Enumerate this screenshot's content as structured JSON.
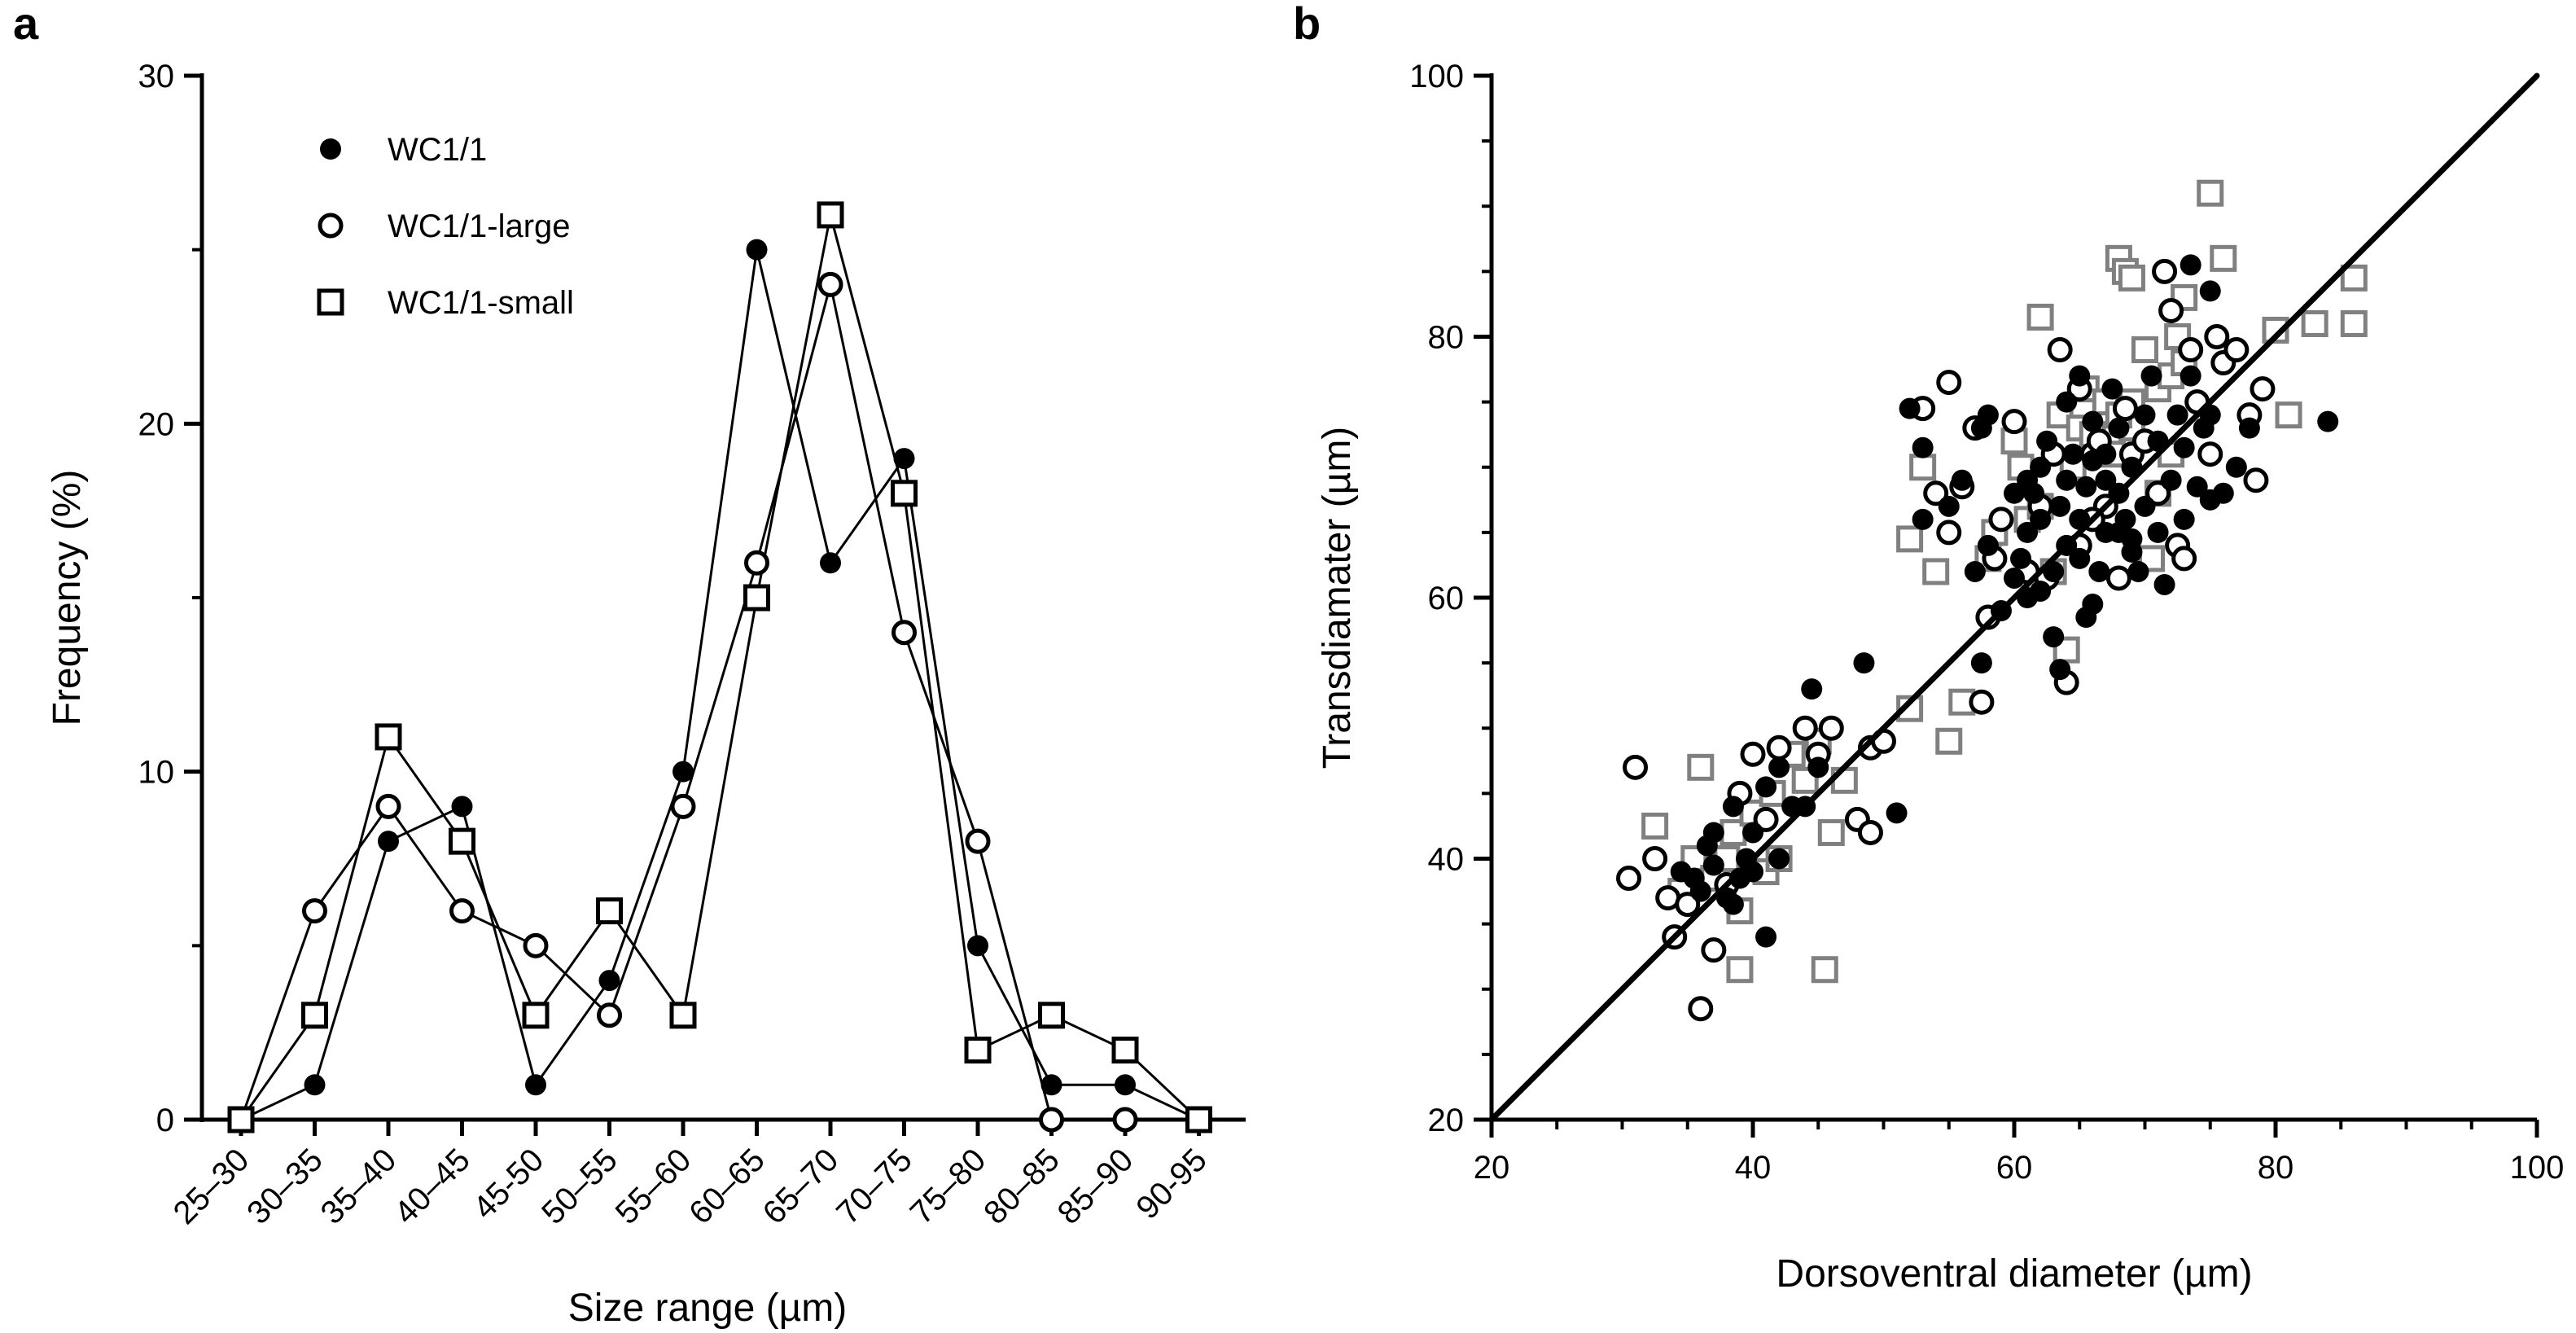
{
  "figure": {
    "panels": [
      {
        "letter": "a"
      },
      {
        "letter": "b"
      }
    ]
  },
  "chart_data": [
    {
      "type": "line",
      "panel": "a",
      "xlabel": "Size range (µm)",
      "ylabel": "Frequency (%)",
      "ylim": [
        0,
        30
      ],
      "yticks": [
        0,
        10,
        20,
        30
      ],
      "categories": [
        "25–30",
        "30–35",
        "35–40",
        "40–45",
        "45-50",
        "50–55",
        "55–60",
        "60–65",
        "65–70",
        "70–75",
        "75–80",
        "80–85",
        "85–90",
        "90-95"
      ],
      "legend_position": "top-left",
      "series": [
        {
          "name": "WC1/1",
          "marker": "filled-circle",
          "values": [
            0,
            1,
            8,
            9,
            1,
            4,
            10,
            25,
            16,
            19,
            5,
            1,
            1,
            0
          ]
        },
        {
          "name": "WC1/1-large",
          "marker": "open-circle",
          "values": [
            0,
            6,
            9,
            6,
            5,
            3,
            9,
            16,
            24,
            14,
            8,
            0,
            0,
            0
          ]
        },
        {
          "name": "WC1/1-small",
          "marker": "open-square",
          "values": [
            0,
            3,
            11,
            8,
            3,
            6,
            3,
            15,
            26,
            18,
            2,
            3,
            2,
            0
          ]
        }
      ]
    },
    {
      "type": "scatter",
      "panel": "b",
      "xlabel": "Dorsoventral diameter (µm)",
      "ylabel": "Transdiamater (µm)",
      "xlim": [
        20,
        100
      ],
      "ylim": [
        20,
        100
      ],
      "xticks": [
        20,
        40,
        60,
        80,
        100
      ],
      "yticks": [
        20,
        40,
        60,
        80,
        100
      ],
      "fit_line": {
        "x": [
          20,
          100
        ],
        "y": [
          20,
          100
        ]
      },
      "series": [
        {
          "name": "WC1/1",
          "marker": "filled-circle",
          "color": "#000000",
          "points": [
            [
              34.5,
              39
            ],
            [
              35.5,
              38.5
            ],
            [
              36,
              37.5
            ],
            [
              36.5,
              41
            ],
            [
              37,
              39.5
            ],
            [
              38,
              37
            ],
            [
              39,
              38.5
            ],
            [
              38.5,
              36.5
            ],
            [
              40,
              39
            ],
            [
              41,
              34
            ],
            [
              40,
              42
            ],
            [
              41,
              45.5
            ],
            [
              42,
              47
            ],
            [
              43,
              44
            ],
            [
              44,
              44
            ],
            [
              44.5,
              53
            ],
            [
              45,
              47
            ],
            [
              48.5,
              55
            ],
            [
              51,
              43.5
            ],
            [
              37,
              42
            ],
            [
              39.5,
              40
            ],
            [
              42,
              40
            ],
            [
              38.5,
              44
            ],
            [
              52,
              74.5
            ],
            [
              53,
              71.5
            ],
            [
              53,
              66
            ],
            [
              55,
              67
            ],
            [
              56,
              69
            ],
            [
              57,
              62
            ],
            [
              57.5,
              73
            ],
            [
              58,
              64
            ],
            [
              57.5,
              55
            ],
            [
              59,
              59
            ],
            [
              60,
              61.5
            ],
            [
              60.5,
              63
            ],
            [
              61,
              60
            ],
            [
              61,
              65
            ],
            [
              61.5,
              68
            ],
            [
              62,
              66
            ],
            [
              62,
              70
            ],
            [
              62.5,
              72
            ],
            [
              63,
              62
            ],
            [
              63,
              57
            ],
            [
              63.5,
              67
            ],
            [
              64,
              64
            ],
            [
              64,
              69
            ],
            [
              64.5,
              71
            ],
            [
              65,
              63
            ],
            [
              65,
              66
            ],
            [
              65.5,
              68.5
            ],
            [
              65.5,
              58.5
            ],
            [
              66,
              73.5
            ],
            [
              66,
              70.5
            ],
            [
              66.5,
              62
            ],
            [
              67,
              65
            ],
            [
              67,
              71
            ],
            [
              67.5,
              76
            ],
            [
              68,
              68
            ],
            [
              68,
              73
            ],
            [
              68.5,
              66
            ],
            [
              69,
              70
            ],
            [
              69,
              64.5
            ],
            [
              69.5,
              62
            ],
            [
              70,
              74
            ],
            [
              70,
              67
            ],
            [
              70.5,
              77
            ],
            [
              71,
              65
            ],
            [
              71,
              72
            ],
            [
              71.5,
              61
            ],
            [
              72,
              69
            ],
            [
              72.5,
              74
            ],
            [
              73,
              66
            ],
            [
              73,
              71.5
            ],
            [
              73.5,
              77
            ],
            [
              74,
              68.5
            ],
            [
              74.5,
              73
            ],
            [
              75,
              74
            ],
            [
              75,
              67.5
            ],
            [
              76,
              68
            ],
            [
              77,
              70
            ],
            [
              78,
              73
            ],
            [
              84,
              73.5
            ],
            [
              73.5,
              85.5
            ],
            [
              75,
              83.5
            ],
            [
              63.5,
              54.5
            ],
            [
              62,
              60.5
            ],
            [
              69,
              63.5
            ],
            [
              66,
              59.5
            ],
            [
              61,
              69
            ],
            [
              64,
              75
            ],
            [
              65,
              77
            ],
            [
              67,
              69
            ],
            [
              68,
              65
            ],
            [
              60,
              68
            ],
            [
              58,
              74
            ]
          ]
        },
        {
          "name": "WC1/1-large",
          "marker": "open-circle",
          "color": "#000000",
          "points": [
            [
              31,
              47
            ],
            [
              30.5,
              38.5
            ],
            [
              32.5,
              40
            ],
            [
              33.5,
              37
            ],
            [
              34,
              34
            ],
            [
              35,
              36.5
            ],
            [
              36,
              28.5
            ],
            [
              37,
              33
            ],
            [
              38,
              38
            ],
            [
              39,
              45
            ],
            [
              40,
              48
            ],
            [
              41,
              43
            ],
            [
              42,
              48.5
            ],
            [
              44,
              50
            ],
            [
              45,
              48
            ],
            [
              46,
              50
            ],
            [
              48,
              43
            ],
            [
              49,
              42
            ],
            [
              49,
              48.5
            ],
            [
              50,
              49
            ],
            [
              53,
              74.5
            ],
            [
              54,
              68
            ],
            [
              55,
              76.5
            ],
            [
              55,
              65
            ],
            [
              56,
              68.5
            ],
            [
              57,
              73
            ],
            [
              57.5,
              52
            ],
            [
              58,
              58.5
            ],
            [
              58.5,
              63
            ],
            [
              59,
              66
            ],
            [
              60,
              73.5
            ],
            [
              61,
              62
            ],
            [
              62,
              67
            ],
            [
              63,
              71
            ],
            [
              63.5,
              79
            ],
            [
              64,
              53.5
            ],
            [
              65,
              64
            ],
            [
              65,
              76
            ],
            [
              66,
              71
            ],
            [
              66.5,
              72
            ],
            [
              67,
              67
            ],
            [
              68,
              61.5
            ],
            [
              68.5,
              74.5
            ],
            [
              69,
              71
            ],
            [
              70,
              72
            ],
            [
              71,
              68
            ],
            [
              71.5,
              85
            ],
            [
              72,
              82
            ],
            [
              72.5,
              64
            ],
            [
              73,
              63
            ],
            [
              73.5,
              79
            ],
            [
              74,
              75
            ],
            [
              75,
              71
            ],
            [
              75.5,
              80
            ],
            [
              76,
              78
            ],
            [
              77,
              79
            ],
            [
              78,
              74
            ],
            [
              79,
              76
            ],
            [
              78.5,
              69
            ],
            [
              62.5,
              61.5
            ],
            [
              66,
              66
            ]
          ]
        },
        {
          "name": "WC1/1-small",
          "marker": "open-square",
          "color": "#808080",
          "points": [
            [
              32.5,
              42.5
            ],
            [
              34.5,
              37.5
            ],
            [
              35.5,
              40
            ],
            [
              36,
              47
            ],
            [
              37,
              38.5
            ],
            [
              38,
              40
            ],
            [
              38.5,
              42
            ],
            [
              39,
              36
            ],
            [
              39,
              31.5
            ],
            [
              40,
              43.5
            ],
            [
              41,
              39
            ],
            [
              41.5,
              45
            ],
            [
              42,
              40
            ],
            [
              43,
              48
            ],
            [
              44,
              46
            ],
            [
              45,
              49
            ],
            [
              45.5,
              31.5
            ],
            [
              46,
              42
            ],
            [
              47,
              46
            ],
            [
              52,
              64.5
            ],
            [
              52,
              51.5
            ],
            [
              53,
              70
            ],
            [
              54,
              62
            ],
            [
              55,
              49
            ],
            [
              56,
              52
            ],
            [
              58,
              63
            ],
            [
              58.5,
              65
            ],
            [
              60,
              72
            ],
            [
              60.5,
              70
            ],
            [
              61,
              66
            ],
            [
              62,
              81.5
            ],
            [
              62,
              67
            ],
            [
              63,
              62
            ],
            [
              63.5,
              74
            ],
            [
              64,
              56
            ],
            [
              64.5,
              70
            ],
            [
              65,
              73
            ],
            [
              65.5,
              76
            ],
            [
              66,
              72.5
            ],
            [
              67,
              75
            ],
            [
              67.5,
              71
            ],
            [
              68,
              86
            ],
            [
              68.5,
              85
            ],
            [
              69,
              84.5
            ],
            [
              69,
              73
            ],
            [
              70,
              79
            ],
            [
              70.5,
              63
            ],
            [
              71,
              76
            ],
            [
              71,
              68
            ],
            [
              72,
              77
            ],
            [
              72,
              71
            ],
            [
              72.5,
              80
            ],
            [
              73,
              78
            ],
            [
              73,
              83
            ],
            [
              75,
              91
            ],
            [
              76,
              86
            ],
            [
              80,
              80.5
            ],
            [
              81,
              74
            ],
            [
              83,
              81
            ],
            [
              86,
              81
            ],
            [
              86,
              84.5
            ],
            [
              68,
              74
            ],
            [
              69,
              75
            ]
          ]
        }
      ]
    }
  ]
}
